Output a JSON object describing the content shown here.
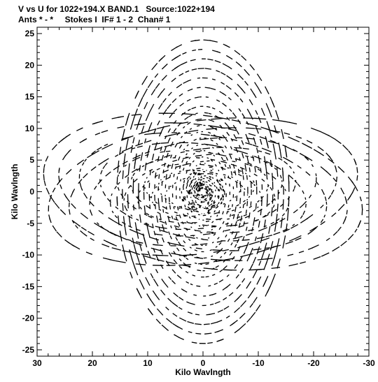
{
  "header": {
    "title_line1": "V vs U for 1022+194.X BAND.1   Source:1022+194",
    "title_line2": "Ants * - *     Stokes I  IF# 1 - 2  Chan# 1"
  },
  "chart_data": {
    "type": "scatter",
    "title": "V vs U for 1022+194.X BAND.1   Source:1022+194",
    "subtitle": "Ants * - *     Stokes I  IF# 1 - 2  Chan# 1",
    "xlabel": "Kilo Wavlngth",
    "ylabel": "Kilo Wavlngth",
    "xlim": [
      30,
      -30
    ],
    "ylim": [
      -26,
      26
    ],
    "x_ticks": [
      30,
      20,
      10,
      0,
      -10,
      -20,
      -30
    ],
    "x_tick_labels": [
      "30",
      "20",
      "10",
      "0",
      "-10",
      "-20",
      "-30"
    ],
    "y_ticks": [
      25,
      20,
      15,
      10,
      5,
      0,
      -5,
      -10,
      -15,
      -20,
      -25
    ],
    "y_tick_labels": [
      "25",
      "20",
      "15",
      "10",
      "5",
      "0",
      "-5",
      "-10",
      "-15",
      "-20",
      "-25"
    ],
    "grid": false,
    "marker_color": "#000000",
    "description_note": "",
    "uv_tracks": {
      "baseline_radii_klambda": [
        1.5,
        2.5,
        3.5,
        4.5,
        5.5,
        6.5,
        7.5,
        8.5,
        9.5,
        10.5,
        11.5,
        12.5,
        13.5,
        15,
        16.5,
        18,
        19.5,
        21,
        22.5,
        24
      ],
      "ellipse_axis_ratio": 0.72,
      "tracks_rotated_vertical": true,
      "mirror_symmetric": true
    }
  }
}
